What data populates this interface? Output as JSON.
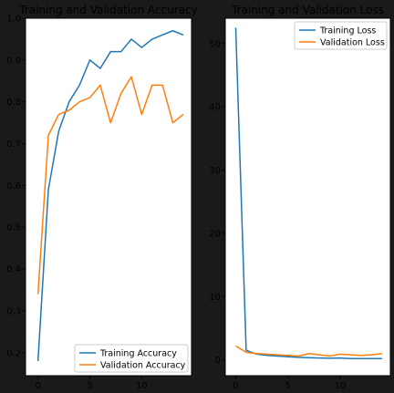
{
  "chart_data": [
    {
      "type": "line",
      "title": "Training and Validation Accuracy",
      "x": [
        0,
        1,
        2,
        3,
        4,
        5,
        6,
        7,
        8,
        9,
        10,
        11,
        12,
        13,
        14
      ],
      "xlim": [
        -1.2,
        14.8
      ],
      "ylim": [
        0.145,
        1.0
      ],
      "xticks": [
        0,
        5,
        10
      ],
      "yticks": [
        0.2,
        0.3,
        0.4,
        0.5,
        0.6,
        0.7,
        0.8,
        0.9,
        1.0
      ],
      "legend": "lower-right",
      "series": [
        {
          "name": "Training Accuracy",
          "color": "#1f77b4",
          "values": [
            0.18,
            0.59,
            0.73,
            0.8,
            0.84,
            0.9,
            0.88,
            0.92,
            0.92,
            0.95,
            0.93,
            0.95,
            0.96,
            0.97,
            0.96
          ]
        },
        {
          "name": "Validation Accuracy",
          "color": "#ff7f0e",
          "values": [
            0.34,
            0.72,
            0.77,
            0.78,
            0.8,
            0.81,
            0.84,
            0.75,
            0.82,
            0.86,
            0.77,
            0.84,
            0.84,
            0.75,
            0.77
          ]
        }
      ]
    },
    {
      "type": "line",
      "title": "Training and Validation Loss",
      "x": [
        0,
        1,
        2,
        3,
        4,
        5,
        6,
        7,
        8,
        9,
        10,
        11,
        12,
        13,
        14
      ],
      "xlim": [
        -1.0,
        14.8
      ],
      "ylim": [
        -2.5,
        54.0
      ],
      "xticks": [
        0,
        5,
        10
      ],
      "yticks": [
        0,
        10,
        20,
        30,
        40,
        50
      ],
      "legend": "upper-right",
      "series": [
        {
          "name": "Training Loss",
          "color": "#1f77b4",
          "values": [
            52.5,
            1.5,
            0.9,
            0.7,
            0.6,
            0.5,
            0.4,
            0.35,
            0.3,
            0.25,
            0.3,
            0.2,
            0.2,
            0.2,
            0.2
          ]
        },
        {
          "name": "Validation Loss",
          "color": "#ff7f0e",
          "values": [
            2.2,
            1.2,
            1.0,
            0.9,
            0.8,
            0.7,
            0.6,
            1.0,
            0.8,
            0.6,
            0.9,
            0.8,
            0.7,
            0.8,
            1.0
          ]
        }
      ]
    }
  ]
}
